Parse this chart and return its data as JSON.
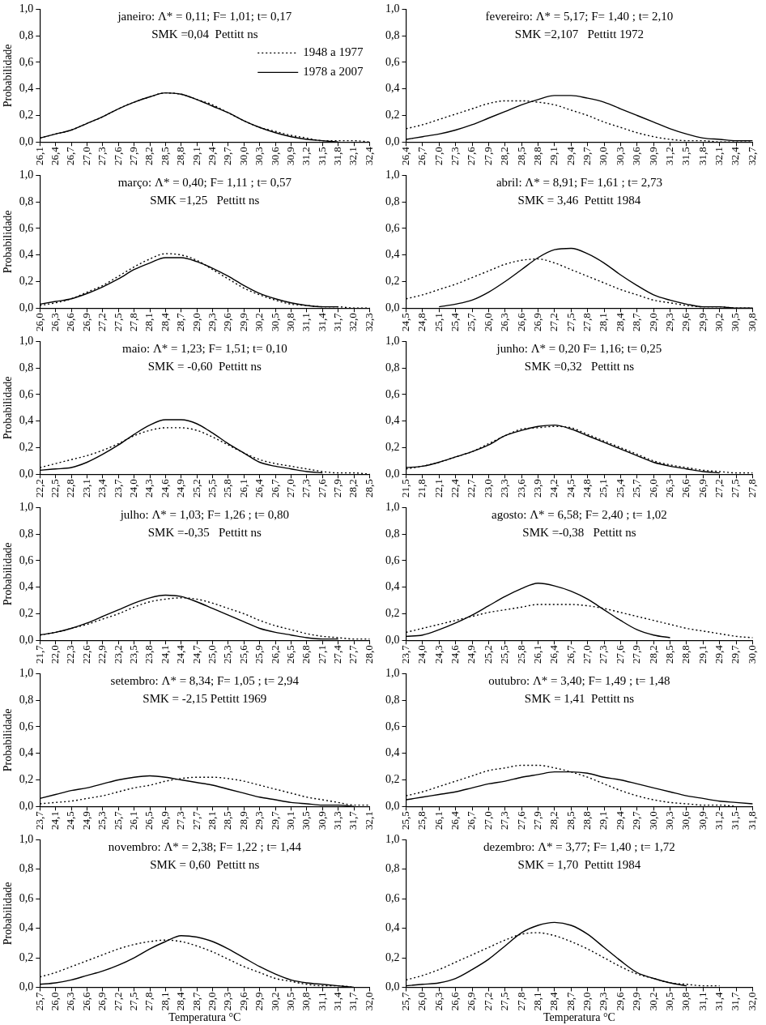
{
  "chart_data": [
    {
      "type": "line",
      "annotations": [
        "janeiro: Λ* = 0,11; F= 1,01; t= 0,17",
        "SMK =0,04  Pettitt ns"
      ],
      "ylabel": "Probabilidade",
      "legend": "top right",
      "marker": "none",
      "grid": false,
      "ylim": [
        0,
        1
      ],
      "yticks": [
        {
          "value": 0,
          "label": "0,0"
        },
        {
          "value": 0.2,
          "label": "0,2"
        },
        {
          "value": 0.4,
          "label": "0,4"
        },
        {
          "value": 0.6,
          "label": "0,6"
        },
        {
          "value": 0.8,
          "label": "0,8"
        },
        {
          "value": 1,
          "label": "1,0"
        }
      ],
      "categories": [
        "26,1",
        "26,4",
        "26,7",
        "27,0",
        "27,3",
        "27,6",
        "27,9",
        "28,2",
        "28,5",
        "28,8",
        "29,1",
        "29,4",
        "29,7",
        "30,0",
        "30,3",
        "30,6",
        "30,9",
        "31,2",
        "31,5",
        "31,8",
        "32,1",
        "32,4"
      ],
      "series": [
        {
          "name": "1948 a 1977",
          "color": "#000000",
          "line_style": "dotted",
          "values": [
            0.03,
            0.06,
            0.09,
            0.14,
            0.19,
            0.25,
            0.3,
            0.34,
            0.37,
            0.36,
            0.32,
            0.28,
            0.22,
            0.16,
            0.11,
            0.08,
            0.05,
            0.03,
            0.01,
            0.01,
            0.01,
            0
          ]
        },
        {
          "name": "1978 a 2007",
          "color": "#000000",
          "line_style": "solid",
          "values": [
            0.03,
            0.06,
            0.09,
            0.14,
            0.19,
            0.25,
            0.3,
            0.34,
            0.37,
            0.36,
            0.32,
            0.27,
            0.22,
            0.16,
            0.11,
            0.07,
            0.04,
            0.02,
            0.01,
            0,
            null,
            null
          ]
        }
      ]
    },
    {
      "type": "line",
      "annotations": [
        "fevereiro: Λ* = 5,17; F= 1,40 ; t= 2,10",
        "SMK =2,107   Pettitt 1972"
      ],
      "marker": "none",
      "grid": false,
      "ylim": [
        0,
        1
      ],
      "yticks": [
        {
          "value": 0,
          "label": "0,0"
        },
        {
          "value": 0.2,
          "label": "0,2"
        },
        {
          "value": 0.4,
          "label": "0,4"
        },
        {
          "value": 0.6,
          "label": "0,6"
        },
        {
          "value": 0.8,
          "label": "0,8"
        },
        {
          "value": 1,
          "label": "1,0"
        }
      ],
      "categories": [
        "26,4",
        "26,7",
        "27,0",
        "27,3",
        "27,6",
        "27,9",
        "28,2",
        "28,5",
        "28,8",
        "29,1",
        "29,4",
        "29,7",
        "30,0",
        "30,3",
        "30,6",
        "30,9",
        "31,2",
        "31,5",
        "31,8",
        "32,1",
        "32,4",
        "32,7"
      ],
      "series": [
        {
          "color": "#000000",
          "line_style": "dotted",
          "values": [
            0.1,
            0.13,
            0.17,
            0.21,
            0.25,
            0.29,
            0.31,
            0.31,
            0.3,
            0.28,
            0.24,
            0.2,
            0.15,
            0.11,
            0.07,
            0.04,
            0.02,
            0.01,
            0.01,
            0,
            0,
            0
          ]
        },
        {
          "color": "#000000",
          "line_style": "solid",
          "values": [
            0.02,
            0.04,
            0.06,
            0.09,
            0.13,
            0.18,
            0.23,
            0.28,
            0.32,
            0.35,
            0.35,
            0.33,
            0.3,
            0.25,
            0.2,
            0.15,
            0.1,
            0.06,
            0.03,
            0.02,
            0.01,
            0.01
          ]
        }
      ]
    },
    {
      "type": "line",
      "annotations": [
        "março: Λ* = 0,40; F= 1,11 ; t= 0,57",
        "SMK =1,25   Pettitt ns"
      ],
      "ylabel": "Probabilidade",
      "marker": "none",
      "grid": false,
      "ylim": [
        0,
        1
      ],
      "yticks": [
        {
          "value": 0,
          "label": "0,0"
        },
        {
          "value": 0.2,
          "label": "0,2"
        },
        {
          "value": 0.4,
          "label": "0,4"
        },
        {
          "value": 0.6,
          "label": "0,6"
        },
        {
          "value": 0.8,
          "label": "0,8"
        },
        {
          "value": 1,
          "label": "1,0"
        }
      ],
      "categories": [
        "26,0",
        "26,3",
        "26,6",
        "26,9",
        "27,2",
        "27,5",
        "27,8",
        "28,1",
        "28,4",
        "28,7",
        "29,0",
        "29,3",
        "29,6",
        "29,9",
        "30,2",
        "30,5",
        "30,8",
        "31,1",
        "31,4",
        "31,7",
        "32,0",
        "32,3"
      ],
      "series": [
        {
          "color": "#000000",
          "line_style": "dotted",
          "values": [
            0.02,
            0.04,
            0.07,
            0.12,
            0.17,
            0.24,
            0.31,
            0.37,
            0.41,
            0.4,
            0.36,
            0.29,
            0.22,
            0.15,
            0.1,
            0.06,
            0.03,
            0.02,
            0.01,
            0.01,
            0,
            0
          ]
        },
        {
          "color": "#000000",
          "line_style": "solid",
          "values": [
            0.03,
            0.05,
            0.07,
            0.11,
            0.16,
            0.22,
            0.29,
            0.34,
            0.38,
            0.38,
            0.35,
            0.3,
            0.24,
            0.17,
            0.11,
            0.07,
            0.04,
            0.02,
            0.01,
            0.01,
            null,
            null
          ]
        }
      ]
    },
    {
      "type": "line",
      "annotations": [
        "abril: Λ* = 8,91; F= 1,61 ; t= 2,73",
        "SMK = 3,46  Pettitt 1984"
      ],
      "marker": "none",
      "grid": false,
      "ylim": [
        0,
        1
      ],
      "yticks": [
        {
          "value": 0,
          "label": "0,0"
        },
        {
          "value": 0.2,
          "label": "0,2"
        },
        {
          "value": 0.4,
          "label": "0,4"
        },
        {
          "value": 0.6,
          "label": "0,6"
        },
        {
          "value": 0.8,
          "label": "0,8"
        },
        {
          "value": 1,
          "label": "1,0"
        }
      ],
      "categories": [
        "24,5",
        "24,8",
        "25,1",
        "25,4",
        "25,7",
        "26,0",
        "26,3",
        "26,6",
        "26,9",
        "27,2",
        "27,5",
        "27,8",
        "28,1",
        "28,4",
        "28,7",
        "29,0",
        "29,3",
        "29,6",
        "29,9",
        "30,2",
        "30,5",
        "30,8"
      ],
      "series": [
        {
          "color": "#000000",
          "line_style": "dotted",
          "values": [
            0.07,
            0.1,
            0.14,
            0.18,
            0.23,
            0.28,
            0.33,
            0.36,
            0.37,
            0.34,
            0.29,
            0.24,
            0.19,
            0.14,
            0.1,
            0.06,
            0.04,
            0.02,
            0.01,
            0.01,
            0,
            0
          ]
        },
        {
          "color": "#000000",
          "line_style": "solid",
          "values": [
            null,
            null,
            0.01,
            0.03,
            0.06,
            0.12,
            0.2,
            0.29,
            0.38,
            0.44,
            0.45,
            0.41,
            0.34,
            0.25,
            0.17,
            0.1,
            0.06,
            0.03,
            0.01,
            0.01,
            0,
            0
          ]
        }
      ]
    },
    {
      "type": "line",
      "annotations": [
        "maio: Λ* = 1,23; F= 1,51; t= 0,10",
        "SMK = -0,60  Pettitt ns"
      ],
      "ylabel": "Probabilidade",
      "marker": "none",
      "grid": false,
      "ylim": [
        0,
        1
      ],
      "yticks": [
        {
          "value": 0,
          "label": "0,0"
        },
        {
          "value": 0.2,
          "label": "0,2"
        },
        {
          "value": 0.4,
          "label": "0,4"
        },
        {
          "value": 0.6,
          "label": "0,6"
        },
        {
          "value": 0.8,
          "label": "0,8"
        },
        {
          "value": 1,
          "label": "1,0"
        }
      ],
      "categories": [
        "22,2",
        "22,5",
        "22,8",
        "23,1",
        "23,4",
        "23,7",
        "24,0",
        "24,3",
        "24,6",
        "24,9",
        "25,2",
        "25,5",
        "25,8",
        "26,1",
        "26,4",
        "26,7",
        "27,0",
        "27,3",
        "27,6",
        "27,9",
        "28,2",
        "28,5"
      ],
      "series": [
        {
          "color": "#000000",
          "line_style": "dotted",
          "values": [
            0.05,
            0.08,
            0.11,
            0.14,
            0.18,
            0.23,
            0.29,
            0.33,
            0.35,
            0.35,
            0.33,
            0.28,
            0.22,
            0.16,
            0.11,
            0.08,
            0.06,
            0.04,
            0.02,
            0.01,
            0.01,
            0
          ]
        },
        {
          "color": "#000000",
          "line_style": "solid",
          "values": [
            0.03,
            0.04,
            0.05,
            0.09,
            0.15,
            0.22,
            0.3,
            0.37,
            0.41,
            0.41,
            0.38,
            0.31,
            0.23,
            0.16,
            0.09,
            0.06,
            0.04,
            0.02,
            0.01,
            null,
            null,
            null
          ]
        }
      ]
    },
    {
      "type": "line",
      "annotations": [
        "junho: Λ* = 0,20 F= 1,16; t= 0,25",
        "SMK =0,32   Pettitt ns"
      ],
      "marker": "none",
      "grid": false,
      "ylim": [
        0,
        1
      ],
      "yticks": [
        {
          "value": 0,
          "label": "0,0"
        },
        {
          "value": 0.2,
          "label": "0,2"
        },
        {
          "value": 0.4,
          "label": "0,4"
        },
        {
          "value": 0.6,
          "label": "0,6"
        },
        {
          "value": 0.8,
          "label": "0,8"
        },
        {
          "value": 1,
          "label": "1,0"
        }
      ],
      "categories": [
        "21,5",
        "21,8",
        "22,1",
        "22,4",
        "22,7",
        "23,0",
        "23,3",
        "23,6",
        "23,9",
        "24,2",
        "24,5",
        "24,8",
        "25,1",
        "25,4",
        "25,7",
        "26,0",
        "26,3",
        "26,6",
        "26,9",
        "27,2",
        "27,5",
        "27,8"
      ],
      "series": [
        {
          "color": "#000000",
          "line_style": "dotted",
          "values": [
            0.04,
            0.06,
            0.09,
            0.13,
            0.17,
            0.23,
            0.29,
            0.34,
            0.35,
            0.36,
            0.35,
            0.3,
            0.25,
            0.2,
            0.15,
            0.1,
            0.07,
            0.05,
            0.03,
            0.02,
            0.01,
            0.01
          ]
        },
        {
          "color": "#000000",
          "line_style": "solid",
          "values": [
            0.05,
            0.06,
            0.09,
            0.13,
            0.17,
            0.22,
            0.29,
            0.33,
            0.36,
            0.37,
            0.34,
            0.29,
            0.24,
            0.19,
            0.14,
            0.09,
            0.06,
            0.04,
            0.02,
            0.01,
            null,
            null
          ]
        }
      ]
    },
    {
      "type": "line",
      "annotations": [
        "julho: Λ* = 1,03; F= 1,26 ; t= 0,80",
        "SMK =-0,35   Pettitt ns"
      ],
      "ylabel": "Probabilidade",
      "marker": "none",
      "grid": false,
      "ylim": [
        0,
        1
      ],
      "yticks": [
        {
          "value": 0,
          "label": "0,0"
        },
        {
          "value": 0.2,
          "label": "0,2"
        },
        {
          "value": 0.4,
          "label": "0,4"
        },
        {
          "value": 0.6,
          "label": "0,6"
        },
        {
          "value": 0.8,
          "label": "0,8"
        },
        {
          "value": 1,
          "label": "1,0"
        }
      ],
      "categories": [
        "21,7",
        "22,0",
        "22,3",
        "22,6",
        "22,9",
        "23,2",
        "23,5",
        "23,8",
        "24,1",
        "24,4",
        "24,7",
        "25,0",
        "25,3",
        "25,6",
        "25,9",
        "26,2",
        "26,5",
        "26,8",
        "27,1",
        "27,4",
        "27,7",
        "28,0"
      ],
      "series": [
        {
          "color": "#000000",
          "line_style": "dotted",
          "values": [
            0.04,
            0.06,
            0.09,
            0.12,
            0.16,
            0.2,
            0.25,
            0.29,
            0.31,
            0.32,
            0.31,
            0.28,
            0.24,
            0.2,
            0.15,
            0.11,
            0.08,
            0.05,
            0.03,
            0.02,
            0.01,
            0.01
          ]
        },
        {
          "color": "#000000",
          "line_style": "solid",
          "values": [
            0.04,
            0.06,
            0.09,
            0.13,
            0.18,
            0.23,
            0.28,
            0.32,
            0.34,
            0.33,
            0.29,
            0.24,
            0.19,
            0.14,
            0.09,
            0.06,
            0.04,
            0.02,
            0.01,
            0.01,
            null,
            null
          ]
        }
      ]
    },
    {
      "type": "line",
      "annotations": [
        "agosto: Λ* = 6,58; F= 2,40 ; t= 1,02",
        "SMK =-0,38   Pettitt ns"
      ],
      "marker": "none",
      "grid": false,
      "ylim": [
        0,
        1
      ],
      "yticks": [
        {
          "value": 0,
          "label": "0,0"
        },
        {
          "value": 0.2,
          "label": "0,2"
        },
        {
          "value": 0.4,
          "label": "0,4"
        },
        {
          "value": 0.6,
          "label": "0,6"
        },
        {
          "value": 0.8,
          "label": "0,8"
        },
        {
          "value": 1,
          "label": "1,0"
        }
      ],
      "categories": [
        "23,7",
        "24,0",
        "24,3",
        "24,6",
        "24,9",
        "25,2",
        "25,5",
        "25,8",
        "26,1",
        "26,4",
        "26,7",
        "27,0",
        "27,3",
        "27,6",
        "27,9",
        "28,2",
        "28,5",
        "28,8",
        "29,1",
        "29,4",
        "29,7",
        "30,0"
      ],
      "series": [
        {
          "color": "#000000",
          "line_style": "dotted",
          "values": [
            0.06,
            0.09,
            0.12,
            0.15,
            0.18,
            0.21,
            0.23,
            0.25,
            0.27,
            0.27,
            0.27,
            0.26,
            0.24,
            0.21,
            0.18,
            0.15,
            0.12,
            0.09,
            0.07,
            0.05,
            0.03,
            0.02
          ]
        },
        {
          "color": "#000000",
          "line_style": "solid",
          "values": [
            0.03,
            0.04,
            0.08,
            0.13,
            0.19,
            0.26,
            0.33,
            0.39,
            0.43,
            0.41,
            0.37,
            0.31,
            0.23,
            0.15,
            0.08,
            0.04,
            0.02,
            null,
            null,
            null,
            null,
            null
          ]
        }
      ]
    },
    {
      "type": "line",
      "annotations": [
        "setembro: Λ* = 8,34; F= 1,05 ; t= 2,94",
        "SMK = -2,15 Pettitt 1969"
      ],
      "ylabel": "Probabilidade",
      "marker": "none",
      "grid": false,
      "ylim": [
        0,
        1
      ],
      "yticks": [
        {
          "value": 0,
          "label": "0,0"
        },
        {
          "value": 0.2,
          "label": "0,2"
        },
        {
          "value": 0.4,
          "label": "0,4"
        },
        {
          "value": 0.6,
          "label": "0,6"
        },
        {
          "value": 0.8,
          "label": "0,8"
        },
        {
          "value": 1,
          "label": "1,0"
        }
      ],
      "categories": [
        "23,7",
        "24,1",
        "24,5",
        "24,9",
        "25,3",
        "25,7",
        "26,1",
        "26,5",
        "26,9",
        "27,3",
        "27,7",
        "28,1",
        "28,5",
        "28,9",
        "29,3",
        "29,7",
        "30,1",
        "30,5",
        "30,9",
        "31,3",
        "31,7",
        "32,1"
      ],
      "series": [
        {
          "color": "#000000",
          "line_style": "dotted",
          "values": [
            0.02,
            0.03,
            0.04,
            0.06,
            0.08,
            0.11,
            0.14,
            0.16,
            0.19,
            0.21,
            0.22,
            0.22,
            0.21,
            0.19,
            0.16,
            0.13,
            0.1,
            0.07,
            0.05,
            0.03,
            0.01,
            0.01
          ]
        },
        {
          "color": "#000000",
          "line_style": "solid",
          "values": [
            0.06,
            0.09,
            0.12,
            0.14,
            0.17,
            0.2,
            0.22,
            0.23,
            0.22,
            0.2,
            0.18,
            0.16,
            0.13,
            0.1,
            0.07,
            0.05,
            0.03,
            0.02,
            0.01,
            0.01,
            0,
            null
          ]
        }
      ]
    },
    {
      "type": "line",
      "annotations": [
        "outubro: Λ* = 3,40; F= 1,49 ; t= 1,48",
        "SMK = 1,41  Pettitt ns"
      ],
      "marker": "none",
      "grid": false,
      "ylim": [
        0,
        1
      ],
      "yticks": [
        {
          "value": 0,
          "label": "0,0"
        },
        {
          "value": 0.2,
          "label": "0,2"
        },
        {
          "value": 0.4,
          "label": "0,4"
        },
        {
          "value": 0.6,
          "label": "0,6"
        },
        {
          "value": 0.8,
          "label": "0,8"
        },
        {
          "value": 1,
          "label": "1,0"
        }
      ],
      "categories": [
        "25,5",
        "25,8",
        "26,1",
        "26,4",
        "26,7",
        "27,0",
        "27,3",
        "27,6",
        "27,9",
        "28,2",
        "28,5",
        "28,8",
        "29,1",
        "29,4",
        "29,7",
        "30,0",
        "30,3",
        "30,6",
        "30,9",
        "31,2",
        "31,5",
        "31,8"
      ],
      "series": [
        {
          "color": "#000000",
          "line_style": "dotted",
          "values": [
            0.08,
            0.11,
            0.15,
            0.19,
            0.23,
            0.27,
            0.29,
            0.31,
            0.31,
            0.29,
            0.26,
            0.22,
            0.17,
            0.12,
            0.08,
            0.05,
            0.03,
            0.02,
            0.01,
            0.01,
            0,
            null
          ]
        },
        {
          "color": "#000000",
          "line_style": "solid",
          "values": [
            0.05,
            0.07,
            0.09,
            0.11,
            0.14,
            0.17,
            0.19,
            0.22,
            0.24,
            0.26,
            0.26,
            0.25,
            0.22,
            0.2,
            0.17,
            0.14,
            0.11,
            0.08,
            0.06,
            0.04,
            0.03,
            0.02
          ]
        }
      ]
    },
    {
      "type": "line",
      "annotations": [
        "novembro: Λ* = 2,38; F= 1,22 ; t= 1,44",
        "SMK = 0,60  Pettitt ns"
      ],
      "ylabel": "Probabilidade",
      "xlabel": "Temperatura °C",
      "marker": "none",
      "grid": false,
      "ylim": [
        0,
        1
      ],
      "yticks": [
        {
          "value": 0,
          "label": "0,0"
        },
        {
          "value": 0.2,
          "label": "0,2"
        },
        {
          "value": 0.4,
          "label": "0,4"
        },
        {
          "value": 0.6,
          "label": "0,6"
        },
        {
          "value": 0.8,
          "label": "0,8"
        },
        {
          "value": 1,
          "label": "1,0"
        }
      ],
      "categories": [
        "25,7",
        "26,0",
        "26,3",
        "26,6",
        "26,9",
        "27,2",
        "27,5",
        "27,8",
        "28,1",
        "28,4",
        "28,7",
        "29,0",
        "29,3",
        "29,6",
        "29,9",
        "30,2",
        "30,5",
        "30,8",
        "31,1",
        "31,4",
        "31,7",
        "32,0"
      ],
      "series": [
        {
          "color": "#000000",
          "line_style": "dotted",
          "values": [
            0.07,
            0.1,
            0.14,
            0.18,
            0.22,
            0.26,
            0.29,
            0.31,
            0.32,
            0.31,
            0.28,
            0.24,
            0.19,
            0.14,
            0.1,
            0.06,
            0.04,
            0.02,
            0.01,
            0.01,
            0,
            null
          ]
        },
        {
          "color": "#000000",
          "line_style": "solid",
          "values": [
            0.02,
            0.03,
            0.05,
            0.08,
            0.11,
            0.15,
            0.2,
            0.26,
            0.31,
            0.35,
            0.34,
            0.31,
            0.26,
            0.2,
            0.14,
            0.09,
            0.05,
            0.03,
            0.02,
            0.01,
            0,
            null
          ]
        }
      ]
    },
    {
      "type": "line",
      "annotations": [
        "dezembro: Λ* = 3,77; F= 1,40 ; t= 1,72",
        "SMK = 1,70  Pettitt 1984"
      ],
      "xlabel": "Temperatura °C",
      "marker": "none",
      "grid": false,
      "ylim": [
        0,
        1
      ],
      "yticks": [
        {
          "value": 0,
          "label": "0,0"
        },
        {
          "value": 0.2,
          "label": "0,2"
        },
        {
          "value": 0.4,
          "label": "0,4"
        },
        {
          "value": 0.6,
          "label": "0,6"
        },
        {
          "value": 0.8,
          "label": "0,8"
        },
        {
          "value": 1,
          "label": "1,0"
        }
      ],
      "categories": [
        "25,7",
        "26,0",
        "26,3",
        "26,6",
        "26,9",
        "27,2",
        "27,5",
        "27,8",
        "28,1",
        "28,4",
        "28,7",
        "29,0",
        "29,3",
        "29,6",
        "29,9",
        "30,2",
        "30,5",
        "30,8",
        "31,1",
        "31,4",
        "31,7",
        "32,0"
      ],
      "series": [
        {
          "color": "#000000",
          "line_style": "dotted",
          "values": [
            0.05,
            0.08,
            0.12,
            0.17,
            0.22,
            0.27,
            0.32,
            0.36,
            0.37,
            0.35,
            0.31,
            0.26,
            0.2,
            0.14,
            0.09,
            0.06,
            0.03,
            0.02,
            0.01,
            0.01,
            null,
            null
          ]
        },
        {
          "color": "#000000",
          "line_style": "solid",
          "values": [
            0.01,
            0.02,
            0.03,
            0.06,
            0.12,
            0.19,
            0.28,
            0.37,
            0.42,
            0.44,
            0.42,
            0.36,
            0.27,
            0.18,
            0.1,
            0.06,
            0.03,
            0.01,
            null,
            null,
            null,
            null
          ]
        }
      ]
    }
  ]
}
